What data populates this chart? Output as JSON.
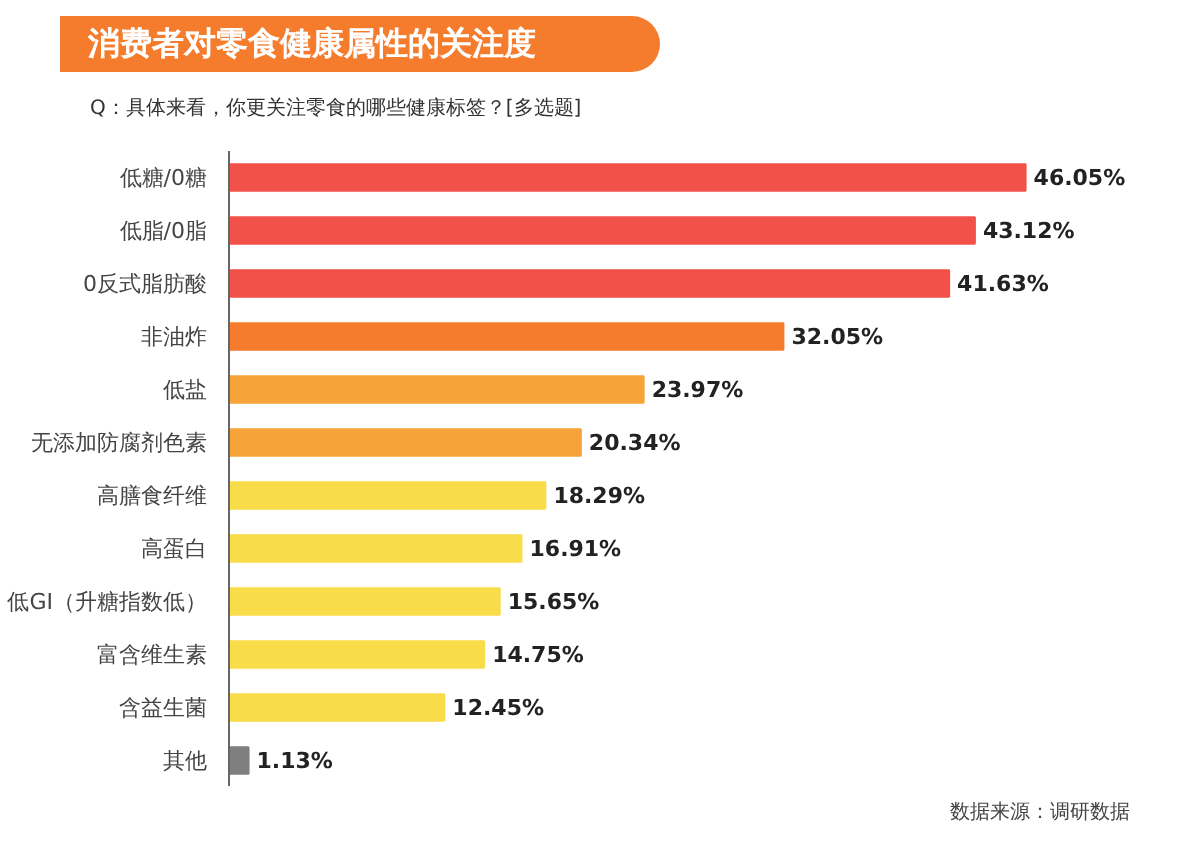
{
  "chart_data": {
    "type": "bar",
    "orientation": "horizontal",
    "title": "消费者对零食健康属性的关注度",
    "subtitle": "Q：具体来看，你更关注零食的哪些健康标签？[多选题]",
    "categories": [
      "低糖/0糖",
      "低脂/0脂",
      "0反式脂肪酸",
      "非油炸",
      "低盐",
      "无添加防腐剂色素",
      "高膳食纤维",
      "高蛋白",
      "低GI（升糖指数低）",
      "富含维生素",
      "含益生菌",
      "其他"
    ],
    "values": [
      46.05,
      43.12,
      41.63,
      32.05,
      23.97,
      20.34,
      18.29,
      16.91,
      15.65,
      14.75,
      12.45,
      1.13
    ],
    "colors": [
      "#f2514a",
      "#f2514a",
      "#f2514a",
      "#f47c2c",
      "#f6a43a",
      "#f6a43a",
      "#f9dc4a",
      "#f9dc4a",
      "#f9dc4a",
      "#f9dc4a",
      "#f9dc4a",
      "#7f7f7f"
    ],
    "value_labels": [
      "46.05%",
      "43.12%",
      "41.63%",
      "32.05%",
      "23.97%",
      "20.34%",
      "18.29%",
      "16.91%",
      "15.65%",
      "14.75%",
      "12.45%",
      "1.13%"
    ],
    "tick_labels": "y",
    "grid": false,
    "annotations": [
      "数据来源：调研数据"
    ]
  }
}
